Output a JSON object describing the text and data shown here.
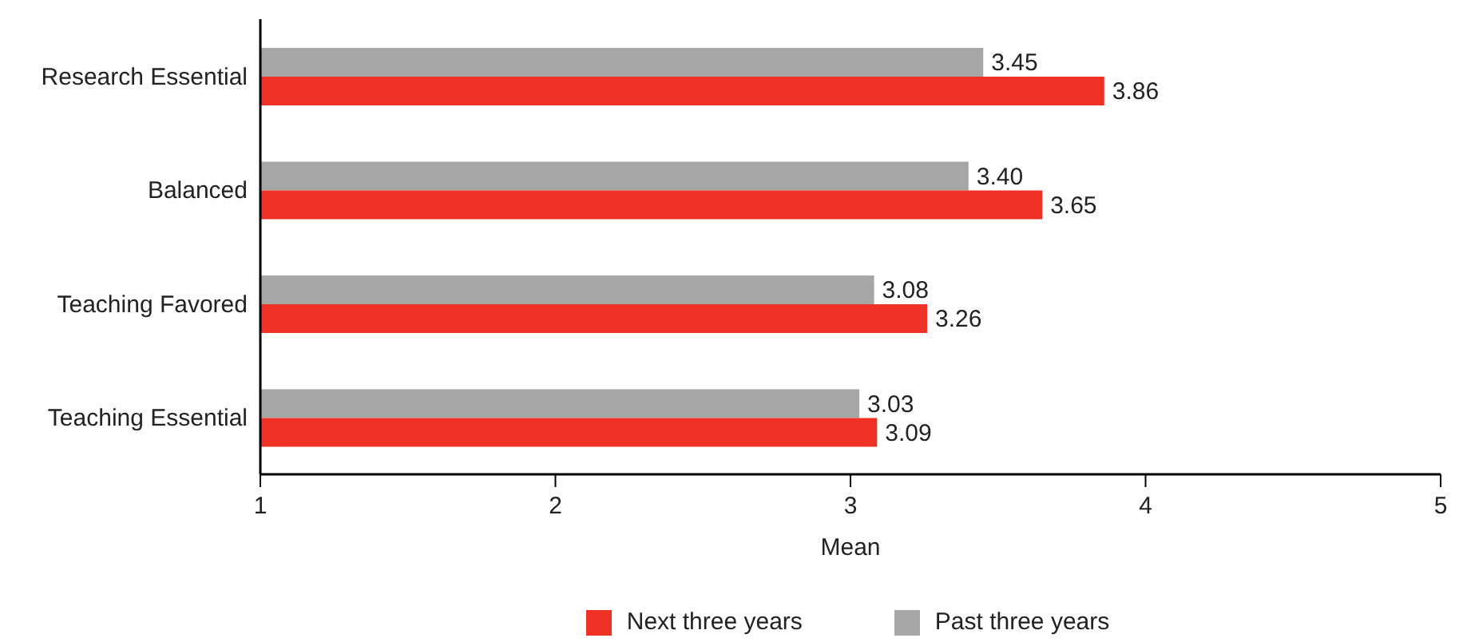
{
  "chart_data": {
    "type": "bar",
    "orientation": "horizontal",
    "xlabel": "Mean",
    "categories": [
      "Research Essential",
      "Balanced",
      "Teaching Favored",
      "Teaching Essential"
    ],
    "series": [
      {
        "name": "Next three years",
        "color": "#ee3124",
        "values": [
          3.86,
          3.65,
          3.26,
          3.09
        ],
        "value_labels": [
          "3.86",
          "3.65",
          "3.26",
          "3.09"
        ]
      },
      {
        "name": "Past three years",
        "color": "#a6a6a6",
        "values": [
          3.45,
          3.4,
          3.08,
          3.03
        ],
        "value_labels": [
          "3.45",
          "3.40",
          "3.08",
          "3.03"
        ]
      }
    ],
    "xlim": [
      1,
      5
    ],
    "xticks": [
      1,
      2,
      3,
      4,
      5
    ],
    "grid": false,
    "legend": "bottom"
  }
}
